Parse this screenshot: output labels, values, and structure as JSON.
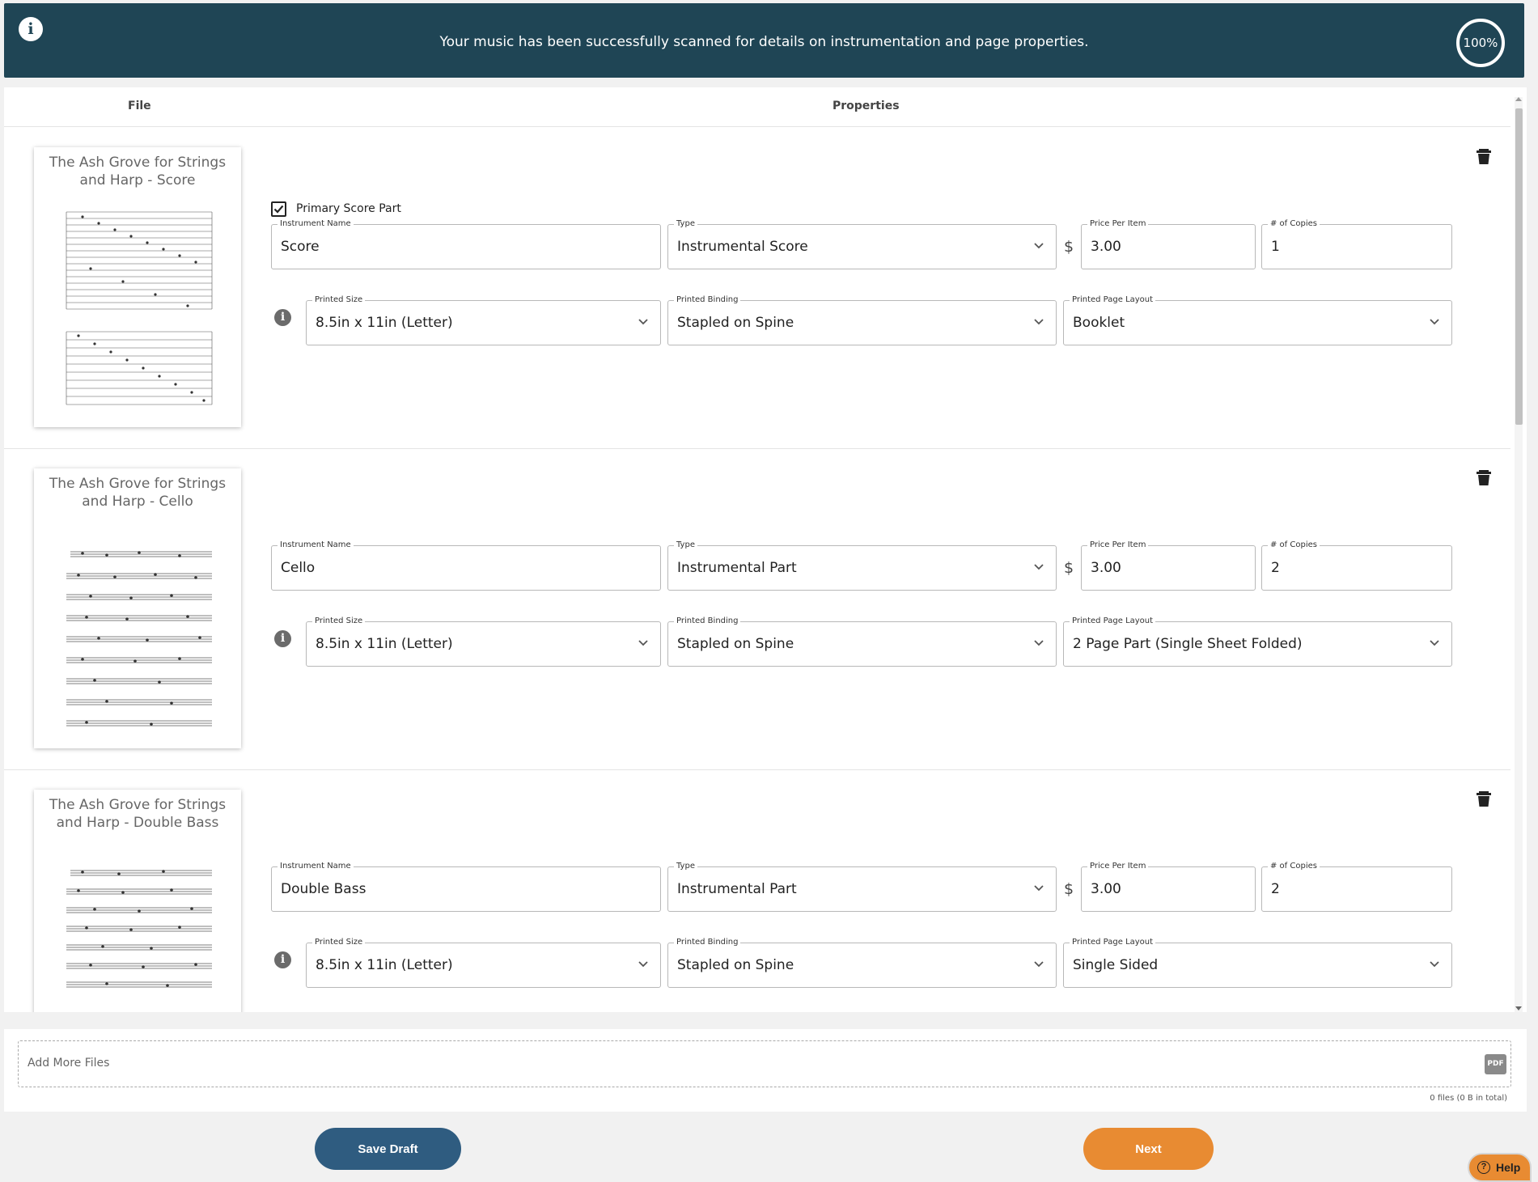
{
  "banner": {
    "message": "Your music has been successfully scanned for details on instrumentation and page properties.",
    "progress": "100%",
    "info_icon": "info-icon"
  },
  "list": {
    "header_file": "File",
    "header_properties": "Properties"
  },
  "files": [
    {
      "title": "The Ash Grove for Strings and Harp - Score",
      "primary_score": true,
      "primary_score_label": "Primary Score Part",
      "instrument_name_label": "Instrument Name",
      "instrument_name": "Score",
      "type_label": "Type",
      "type": "Instrumental Score",
      "price_label": "Price Per Item",
      "currency": "$",
      "price": "3.00",
      "copies_label": "# of Copies",
      "copies": "1",
      "size_label": "Printed Size",
      "size": "8.5in x 11in (Letter)",
      "binding_label": "Printed Binding",
      "binding": "Stapled on Spine",
      "layout_label": "Printed Page Layout",
      "layout": "Booklet"
    },
    {
      "title": "The Ash Grove for Strings and Harp - Cello",
      "primary_score": false,
      "instrument_name_label": "Instrument Name",
      "instrument_name": "Cello",
      "type_label": "Type",
      "type": "Instrumental Part",
      "price_label": "Price Per Item",
      "currency": "$",
      "price": "3.00",
      "copies_label": "# of Copies",
      "copies": "2",
      "size_label": "Printed Size",
      "size": "8.5in x 11in (Letter)",
      "binding_label": "Printed Binding",
      "binding": "Stapled on Spine",
      "layout_label": "Printed Page Layout",
      "layout": "2 Page Part (Single Sheet Folded)"
    },
    {
      "title": "The Ash Grove for Strings and Harp - Double Bass",
      "primary_score": false,
      "instrument_name_label": "Instrument Name",
      "instrument_name": "Double Bass",
      "type_label": "Type",
      "type": "Instrumental Part",
      "price_label": "Price Per Item",
      "currency": "$",
      "price": "3.00",
      "copies_label": "# of Copies",
      "copies": "2",
      "size_label": "Printed Size",
      "size": "8.5in x 11in (Letter)",
      "binding_label": "Printed Binding",
      "binding": "Stapled on Spine",
      "layout_label": "Printed Page Layout",
      "layout": "Single Sided"
    }
  ],
  "upload": {
    "placeholder": "Add More Files",
    "file_icon": "pdf-icon",
    "pdf_badge": "PDF",
    "count_text": "0 files (0 B in total)"
  },
  "footer": {
    "save_label": "Save Draft",
    "next_label": "Next",
    "help_label": "Help"
  },
  "colors": {
    "banner": "#1f4555",
    "save_button": "#2f5c80",
    "next_button": "#e88b32",
    "help_button": "#e88b32"
  }
}
